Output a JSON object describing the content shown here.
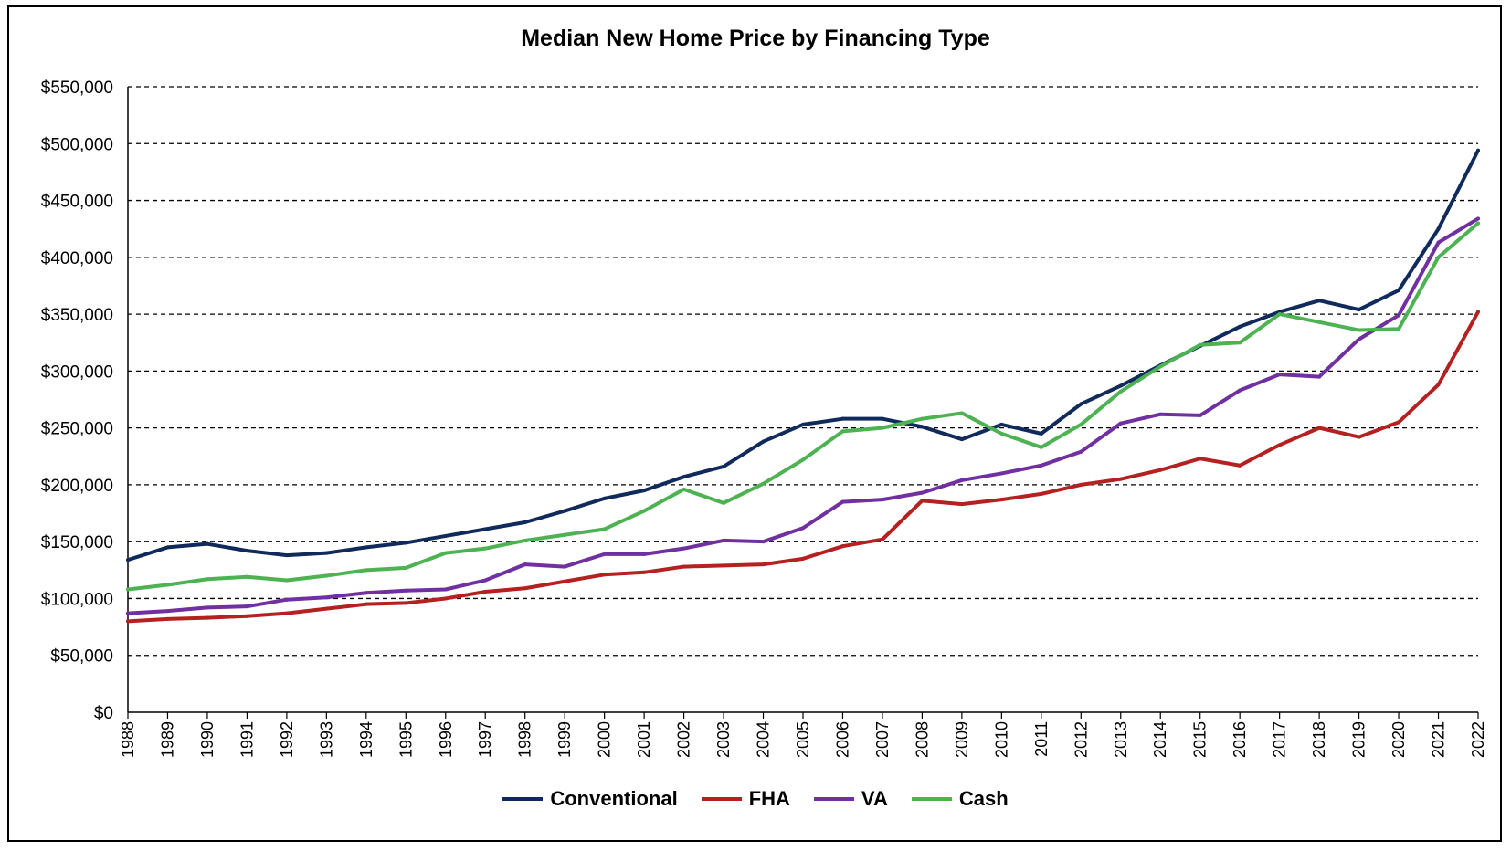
{
  "chart_data": {
    "type": "line",
    "title": "Median New Home Price by Financing Type",
    "xlabel": "",
    "ylabel": "",
    "ylim": [
      0,
      550000
    ],
    "y_ticks": [
      "$0",
      "$50,000",
      "$100,000",
      "$150,000",
      "$200,000",
      "$250,000",
      "$300,000",
      "$350,000",
      "$400,000",
      "$450,000",
      "$500,000",
      "$550,000"
    ],
    "grid": "horizontal dashed",
    "legend_position": "bottom",
    "x": [
      "1988",
      "1989",
      "1990",
      "1991",
      "1992",
      "1993",
      "1994",
      "1995",
      "1996",
      "1997",
      "1998",
      "1999",
      "2000",
      "2001",
      "2002",
      "2003",
      "2004",
      "2005",
      "2006",
      "2007",
      "2008",
      "2009",
      "2010",
      "2011",
      "2012",
      "2013",
      "2014",
      "2015",
      "2016",
      "2017",
      "2018",
      "2019",
      "2020",
      "2021",
      "2022"
    ],
    "series": [
      {
        "name": "Conventional",
        "color": "#102A5C",
        "values": [
          134000,
          145000,
          148000,
          142000,
          138000,
          140000,
          145000,
          149000,
          155000,
          161000,
          167000,
          177000,
          188000,
          195000,
          207000,
          216000,
          238000,
          253000,
          258000,
          258000,
          251000,
          240000,
          253000,
          245000,
          271000,
          287000,
          305000,
          322000,
          339000,
          352000,
          362000,
          354000,
          371000,
          425000,
          494000
        ]
      },
      {
        "name": "FHA",
        "color": "#B52020",
        "values": [
          80000,
          82000,
          83000,
          84500,
          87000,
          91000,
          95000,
          96000,
          100000,
          106000,
          109000,
          115000,
          121000,
          123000,
          128000,
          129000,
          130000,
          135000,
          146000,
          152000,
          186000,
          183000,
          187000,
          192000,
          200000,
          205000,
          213000,
          223000,
          217000,
          235000,
          250000,
          242000,
          255000,
          288000,
          352000
        ]
      },
      {
        "name": "VA",
        "color": "#7030A0",
        "values": [
          87000,
          89000,
          92000,
          93000,
          99000,
          101000,
          105000,
          107000,
          108000,
          116000,
          130000,
          128000,
          139000,
          139000,
          144000,
          151000,
          150000,
          162000,
          185000,
          187000,
          193000,
          204000,
          210000,
          217000,
          229000,
          254000,
          262000,
          261000,
          283000,
          297000,
          295000,
          328000,
          349000,
          413000,
          434000
        ]
      },
      {
        "name": "Cash",
        "color": "#4DB352",
        "values": [
          108000,
          112000,
          117000,
          119000,
          116000,
          120000,
          125000,
          127000,
          140000,
          144000,
          151000,
          156000,
          161000,
          177000,
          196000,
          184000,
          201000,
          222000,
          247000,
          250000,
          258000,
          263000,
          245000,
          233000,
          253000,
          282000,
          304000,
          323000,
          325000,
          350000,
          343000,
          336000,
          337000,
          400000,
          430000
        ]
      }
    ]
  }
}
